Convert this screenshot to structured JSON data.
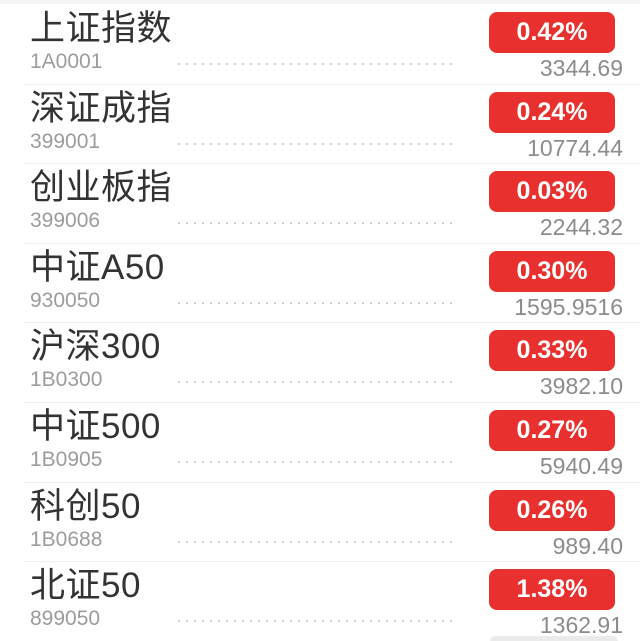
{
  "colors": {
    "badge_background": "#e8312f",
    "badge_text": "#ffffff",
    "index_name": "#333333",
    "index_code": "#9c9c9c",
    "index_value": "#8c8c8c",
    "row_separator": "#f0f0f0"
  },
  "indices": [
    {
      "name": "上证指数",
      "code": "1A0001",
      "change_percent": "0.42%",
      "value": "3344.69"
    },
    {
      "name": "深证成指",
      "code": "399001",
      "change_percent": "0.24%",
      "value": "10774.44"
    },
    {
      "name": "创业板指",
      "code": "399006",
      "change_percent": "0.03%",
      "value": "2244.32"
    },
    {
      "name": "中证A50",
      "code": "930050",
      "change_percent": "0.30%",
      "value": "1595.9516"
    },
    {
      "name": "沪深300",
      "code": "1B0300",
      "change_percent": "0.33%",
      "value": "3982.10"
    },
    {
      "name": "中证500",
      "code": "1B0905",
      "change_percent": "0.27%",
      "value": "5940.49"
    },
    {
      "name": "科创50",
      "code": "1B0688",
      "change_percent": "0.26%",
      "value": "989.40"
    },
    {
      "name": "北证50",
      "code": "899050",
      "change_percent": "1.38%",
      "value": "1362.91"
    }
  ]
}
